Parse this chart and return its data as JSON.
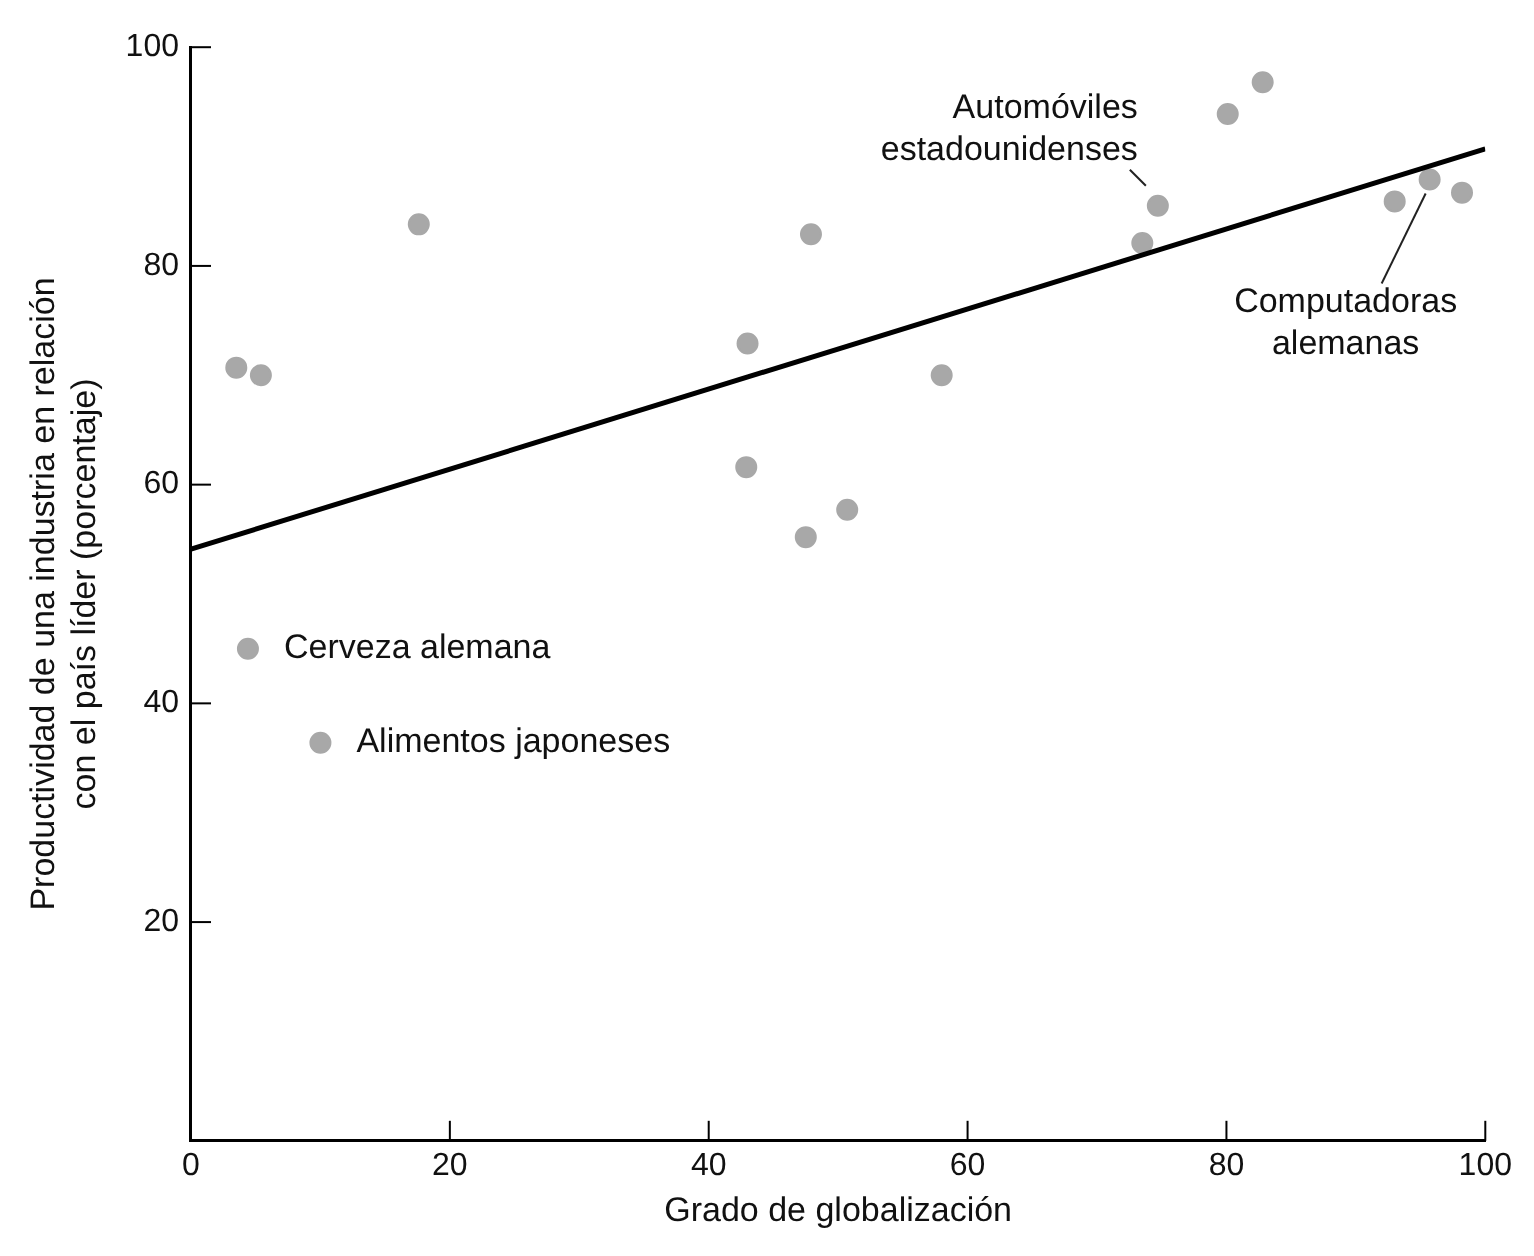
{
  "chart_data": {
    "type": "scatter",
    "xlabel": "Grado de globalización",
    "ylabel": "Productividad de una industria en relación\ncon el país líder (porcentaje)",
    "xlim": [
      0,
      100
    ],
    "xticks": [
      0,
      20,
      40,
      60,
      80,
      100
    ],
    "ylim": [
      0,
      100
    ],
    "yticks": [
      20,
      40,
      60,
      80,
      100
    ],
    "grid": false,
    "legend": false,
    "marker": "circle",
    "series": [
      {
        "color": "#a8a8a8",
        "x": [
          3.5,
          5.4,
          17.6,
          4.4,
          10.0,
          43.0,
          47.9,
          42.9,
          58.0,
          50.7,
          47.5,
          73.5,
          74.7,
          80.1,
          82.8,
          93.0,
          95.7,
          98.2
        ],
        "values": [
          70.7,
          70.0,
          83.8,
          45.0,
          36.4,
          72.9,
          82.9,
          61.6,
          70.0,
          57.7,
          55.2,
          82.1,
          85.5,
          93.9,
          96.8,
          85.9,
          87.9,
          86.7
        ]
      },
      {
        "type": "line",
        "color": "#000000",
        "marker": "none",
        "line_style": "solid",
        "x": [
          0,
          100
        ],
        "values": [
          54.1,
          90.7
        ]
      }
    ],
    "annotations": [
      {
        "text": "Automóviles\nestadounidenses",
        "x": 74.7,
        "y": 85.5
      },
      {
        "text": "Computadoras\nalemanas",
        "x": 95.7,
        "y": 87.9
      },
      {
        "text": "Cerveza alemana",
        "x": 4.4,
        "y": 45.0
      },
      {
        "text": "Alimentos japoneses",
        "x": 10.0,
        "y": 36.4
      }
    ]
  }
}
